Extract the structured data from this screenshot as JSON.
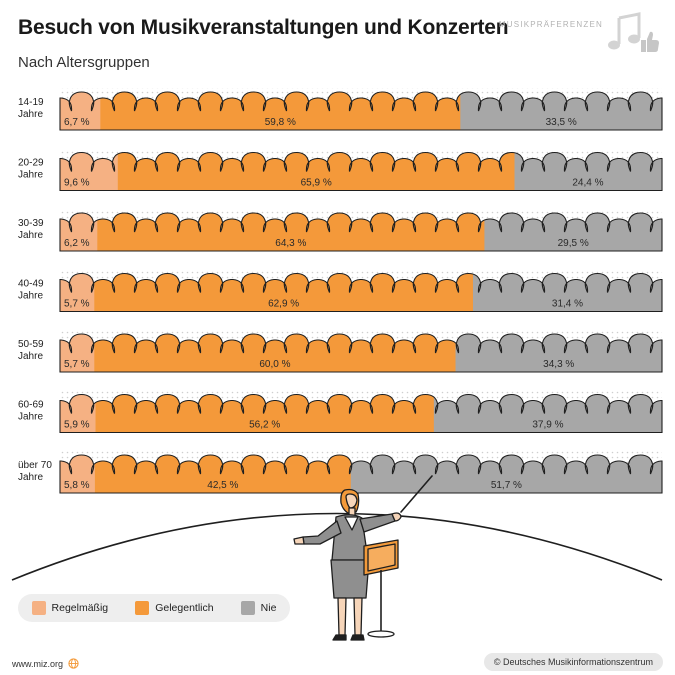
{
  "title": "Besuch von Musikveranstaltungen und Konzerten",
  "subtitle": "Nach Altersgruppen",
  "brand": "MUSIKPRÄFERENZEN",
  "footer": {
    "url": "www.miz.org",
    "copyright": "© Deutsches Musikinformationszentrum"
  },
  "legend": [
    {
      "label": "Regelmäßig",
      "color": "#f5b183"
    },
    {
      "label": "Gelegentlich",
      "color": "#f4993a"
    },
    {
      "label": "Nie",
      "color": "#a7a7a7"
    }
  ],
  "chart_data": {
    "type": "bar",
    "stacked": true,
    "orientation": "horizontal",
    "categories": [
      [
        "14-19",
        "Jahre"
      ],
      [
        "20-29",
        "Jahre"
      ],
      [
        "30-39",
        "Jahre"
      ],
      [
        "40-49",
        "Jahre"
      ],
      [
        "50-59",
        "Jahre"
      ],
      [
        "60-69",
        "Jahre"
      ],
      [
        "über 70",
        "Jahre"
      ]
    ],
    "series": [
      {
        "name": "Regelmäßig",
        "color": "#f5b183",
        "values": [
          6.7,
          9.6,
          6.2,
          5.7,
          5.7,
          5.9,
          5.8
        ],
        "labels": [
          "6,7 %",
          "9,6 %",
          "6,2 %",
          "5,7 %",
          "5,7 %",
          "5,9 %",
          "5,8 %"
        ]
      },
      {
        "name": "Gelegentlich",
        "color": "#f4993a",
        "values": [
          59.8,
          65.9,
          64.3,
          62.9,
          60.0,
          56.2,
          42.5
        ],
        "labels": [
          "59,8 %",
          "65,9 %",
          "64,3 %",
          "62,9 %",
          "60,0 %",
          "56,2 %",
          "42,5 %"
        ]
      },
      {
        "name": "Nie",
        "color": "#a7a7a7",
        "values": [
          33.5,
          24.4,
          29.5,
          31.4,
          34.3,
          37.9,
          51.7
        ],
        "labels": [
          "33,5 %",
          "24,4 %",
          "29,5 %",
          "31,4 %",
          "34,3 %",
          "37,9 %",
          "51,7 %"
        ]
      }
    ],
    "xlim": [
      0,
      100
    ],
    "legend_position": "bottom-left"
  }
}
